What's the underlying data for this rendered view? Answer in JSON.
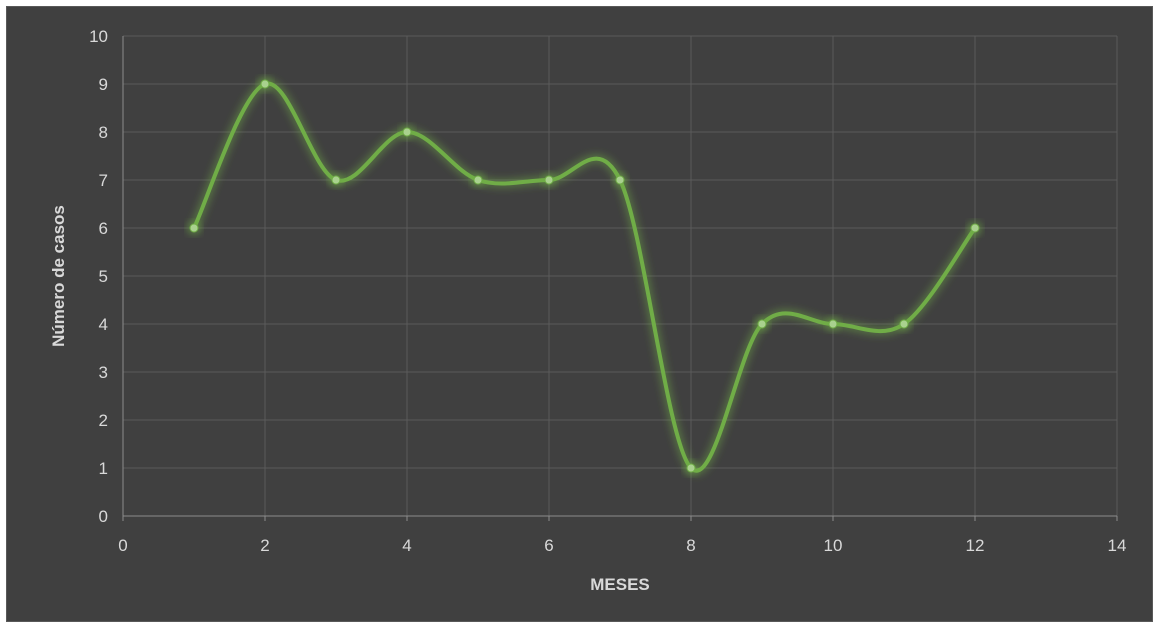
{
  "chart_data": {
    "type": "line",
    "title": "",
    "xlabel": "MESES",
    "ylabel": "Número de casos",
    "xlim": [
      0,
      14
    ],
    "ylim": [
      0,
      10
    ],
    "x_ticks": [
      0,
      2,
      4,
      6,
      8,
      10,
      12,
      14
    ],
    "y_ticks": [
      0,
      1,
      2,
      3,
      4,
      5,
      6,
      7,
      8,
      9,
      10
    ],
    "grid": true,
    "smooth": true,
    "series": [
      {
        "x": [
          1,
          2,
          3,
          4,
          5,
          6,
          7,
          8,
          9,
          10,
          11,
          12
        ],
        "y": [
          6,
          9,
          7,
          8,
          7,
          7,
          7,
          1,
          4,
          4,
          4,
          6
        ],
        "color": "#70ad47"
      }
    ],
    "colors": {
      "background": "#404040",
      "grid": "#5a5a5a",
      "text": "#d9d9d9",
      "line": "#70ad47",
      "marker": "#a9d18e"
    }
  }
}
